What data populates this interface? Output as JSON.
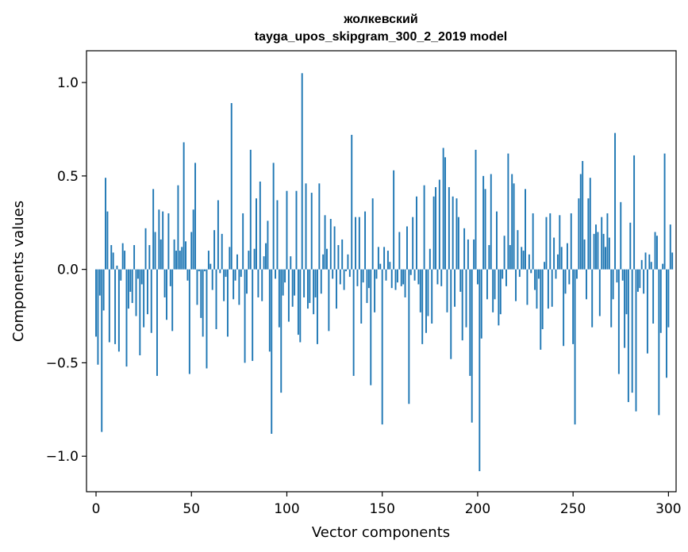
{
  "chart_data": {
    "type": "bar",
    "title": "жолкевский",
    "subtitle": "tayga_upos_skipgram_300_2_2019 model",
    "xlabel": "Vector components",
    "ylabel": "Components values",
    "xlim": [
      -5,
      304
    ],
    "ylim": [
      -1.19,
      1.17
    ],
    "xticks": [
      0,
      50,
      100,
      150,
      200,
      250,
      300
    ],
    "xtick_labels": [
      "0",
      "50",
      "100",
      "150",
      "200",
      "250",
      "300"
    ],
    "yticks": [
      -1.0,
      -0.5,
      0.0,
      0.5,
      1.0
    ],
    "ytick_labels": [
      "−1.0",
      "−0.5",
      "0.0",
      "0.5",
      "1.0"
    ],
    "bar_color": "#1f77b4",
    "grid": false,
    "values": [
      -0.36,
      -0.51,
      -0.14,
      -0.87,
      -0.22,
      0.49,
      0.31,
      -0.39,
      0.13,
      0.09,
      -0.4,
      0.02,
      -0.44,
      -0.06,
      0.14,
      0.1,
      -0.52,
      -0.21,
      -0.12,
      -0.18,
      0.13,
      -0.25,
      -0.05,
      -0.46,
      -0.08,
      -0.31,
      0.22,
      -0.24,
      0.13,
      -0.34,
      0.43,
      0.2,
      -0.57,
      0.32,
      0.16,
      0.31,
      -0.15,
      -0.27,
      0.3,
      -0.09,
      -0.33,
      0.16,
      0.1,
      0.45,
      0.1,
      0.12,
      0.68,
      0.15,
      -0.06,
      -0.56,
      0.2,
      0.32,
      0.57,
      -0.19,
      -0.01,
      -0.26,
      -0.36,
      -0.01,
      -0.53,
      0.1,
      0.03,
      -0.11,
      0.21,
      -0.32,
      0.37,
      -0.02,
      0.19,
      -0.17,
      -0.04,
      -0.36,
      0.12,
      0.89,
      -0.16,
      -0.06,
      0.08,
      -0.19,
      -0.04,
      0.3,
      -0.5,
      -0.13,
      0.1,
      0.64,
      -0.49,
      0.11,
      0.38,
      -0.15,
      0.47,
      -0.17,
      0.07,
      0.14,
      0.26,
      -0.44,
      -0.88,
      0.57,
      -0.05,
      0.37,
      -0.31,
      -0.66,
      -0.14,
      -0.07,
      0.42,
      -0.28,
      0.07,
      -0.2,
      -0.14,
      0.42,
      -0.35,
      -0.39,
      1.05,
      -0.15,
      0.46,
      -0.21,
      -0.18,
      0.41,
      -0.24,
      -0.15,
      -0.4,
      0.46,
      -0.13,
      0.08,
      0.29,
      0.11,
      -0.33,
      0.27,
      -0.05,
      0.23,
      -0.21,
      0.13,
      -0.08,
      0.16,
      -0.11,
      -0.01,
      0.08,
      -0.04,
      0.72,
      -0.57,
      0.28,
      -0.09,
      0.28,
      -0.29,
      -0.07,
      0.31,
      -0.18,
      -0.1,
      -0.62,
      0.38,
      -0.23,
      -0.05,
      0.12,
      0.03,
      -0.83,
      0.12,
      -0.06,
      0.1,
      0.04,
      -0.1,
      0.53,
      -0.11,
      -0.07,
      0.2,
      -0.09,
      -0.08,
      -0.15,
      0.23,
      -0.72,
      -0.03,
      0.28,
      -0.06,
      0.39,
      -0.08,
      -0.23,
      -0.4,
      0.45,
      -0.34,
      -0.25,
      0.11,
      -0.29,
      0.39,
      0.44,
      -0.08,
      0.48,
      -0.09,
      0.65,
      0.6,
      -0.23,
      0.44,
      -0.48,
      0.39,
      -0.2,
      0.38,
      0.28,
      -0.12,
      -0.38,
      0.22,
      -0.31,
      0.16,
      -0.57,
      -0.82,
      0.16,
      0.64,
      -0.08,
      -1.08,
      -0.37,
      0.5,
      0.43,
      -0.16,
      0.13,
      0.51,
      -0.23,
      -0.16,
      0.31,
      -0.3,
      -0.24,
      -0.05,
      0.18,
      -0.09,
      0.62,
      0.13,
      0.51,
      0.46,
      -0.17,
      0.21,
      -0.04,
      0.12,
      0.1,
      0.43,
      -0.19,
      0.08,
      -0.02,
      0.3,
      -0.11,
      -0.21,
      -0.05,
      -0.43,
      -0.32,
      0.04,
      0.28,
      -0.21,
      0.3,
      -0.2,
      0.17,
      -0.05,
      0.08,
      0.29,
      0.12,
      -0.41,
      -0.13,
      0.14,
      -0.08,
      0.3,
      -0.4,
      -0.83,
      -0.05,
      0.38,
      0.51,
      0.58,
      0.16,
      -0.16,
      0.38,
      0.49,
      -0.31,
      0.19,
      0.24,
      0.2,
      -0.25,
      0.28,
      0.19,
      0.12,
      0.3,
      0.17,
      -0.31,
      -0.16,
      0.73,
      -0.07,
      -0.56,
      0.36,
      -0.06,
      -0.42,
      -0.24,
      -0.71,
      0.25,
      -0.66,
      0.61,
      -0.76,
      -0.12,
      -0.1,
      0.05,
      -0.13,
      0.09,
      -0.45,
      0.08,
      0.04,
      -0.29,
      0.2,
      0.18,
      -0.78,
      -0.34,
      0.03,
      0.62,
      -0.58,
      -0.31,
      0.24,
      0.09
    ]
  }
}
